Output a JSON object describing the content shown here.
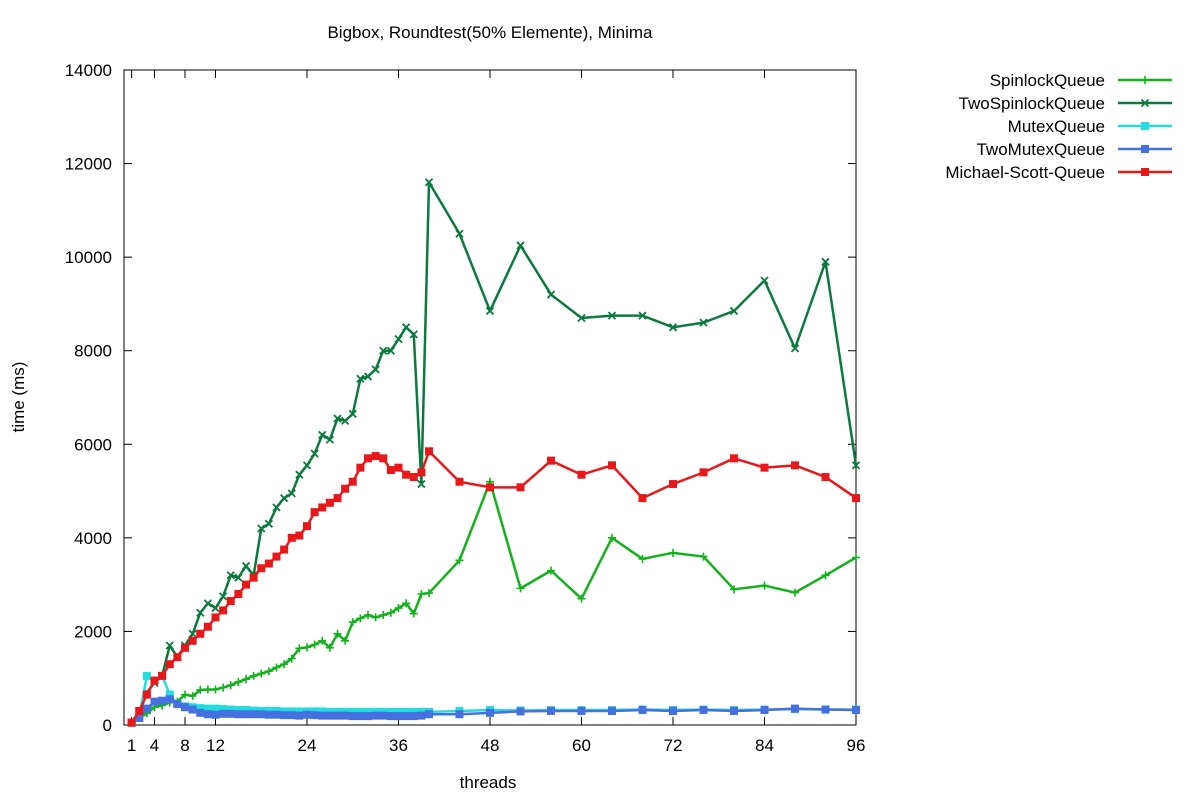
{
  "chart_data": {
    "type": "line",
    "title": "Bigbox, Roundtest(50% Elemente), Minima",
    "xlabel": "threads",
    "ylabel": "time (ms)",
    "xlim": [
      0,
      96
    ],
    "ylim": [
      0,
      14000
    ],
    "xticks": [
      1,
      4,
      8,
      12,
      24,
      36,
      48,
      60,
      72,
      84,
      96
    ],
    "yticks": [
      0,
      2000,
      4000,
      6000,
      8000,
      10000,
      12000,
      14000
    ],
    "grid": false,
    "legend_position": "outside-top-right",
    "series": [
      {
        "name": "SpinlockQueue",
        "color": "#11b21a",
        "marker": "plus",
        "points": [
          [
            1,
            50
          ],
          [
            2,
            150
          ],
          [
            3,
            250
          ],
          [
            4,
            380
          ],
          [
            5,
            420
          ],
          [
            6,
            480
          ],
          [
            7,
            500
          ],
          [
            8,
            650
          ],
          [
            9,
            620
          ],
          [
            10,
            750
          ],
          [
            11,
            760
          ],
          [
            12,
            760
          ],
          [
            13,
            800
          ],
          [
            14,
            850
          ],
          [
            15,
            920
          ],
          [
            16,
            980
          ],
          [
            17,
            1050
          ],
          [
            18,
            1100
          ],
          [
            19,
            1150
          ],
          [
            20,
            1230
          ],
          [
            21,
            1300
          ],
          [
            22,
            1420
          ],
          [
            23,
            1640
          ],
          [
            24,
            1660
          ],
          [
            25,
            1720
          ],
          [
            26,
            1800
          ],
          [
            27,
            1650
          ],
          [
            28,
            1950
          ],
          [
            29,
            1800
          ],
          [
            30,
            2200
          ],
          [
            31,
            2280
          ],
          [
            32,
            2350
          ],
          [
            33,
            2300
          ],
          [
            34,
            2350
          ],
          [
            35,
            2400
          ],
          [
            36,
            2500
          ],
          [
            37,
            2600
          ],
          [
            38,
            2380
          ],
          [
            39,
            2800
          ],
          [
            40,
            2820
          ],
          [
            44,
            3520
          ],
          [
            48,
            5200
          ],
          [
            52,
            2920
          ],
          [
            56,
            3300
          ],
          [
            60,
            2700
          ],
          [
            64,
            4000
          ],
          [
            68,
            3550
          ],
          [
            72,
            3680
          ],
          [
            76,
            3600
          ],
          [
            80,
            2900
          ],
          [
            84,
            2980
          ],
          [
            88,
            2830
          ],
          [
            92,
            3200
          ],
          [
            96,
            3580
          ]
        ]
      },
      {
        "name": "TwoSpinlockQueue",
        "color": "#0a7a3e",
        "marker": "cross",
        "points": [
          [
            1,
            50
          ],
          [
            2,
            250
          ],
          [
            3,
            700
          ],
          [
            4,
            900
          ],
          [
            5,
            1050
          ],
          [
            6,
            1700
          ],
          [
            7,
            1450
          ],
          [
            8,
            1700
          ],
          [
            9,
            1950
          ],
          [
            10,
            2400
          ],
          [
            11,
            2600
          ],
          [
            12,
            2500
          ],
          [
            13,
            2750
          ],
          [
            14,
            3200
          ],
          [
            15,
            3150
          ],
          [
            16,
            3400
          ],
          [
            17,
            3200
          ],
          [
            18,
            4200
          ],
          [
            19,
            4300
          ],
          [
            20,
            4650
          ],
          [
            21,
            4850
          ],
          [
            22,
            4950
          ],
          [
            23,
            5350
          ],
          [
            24,
            5550
          ],
          [
            25,
            5800
          ],
          [
            26,
            6200
          ],
          [
            27,
            6100
          ],
          [
            28,
            6550
          ],
          [
            29,
            6500
          ],
          [
            30,
            6650
          ],
          [
            31,
            7400
          ],
          [
            32,
            7450
          ],
          [
            33,
            7600
          ],
          [
            34,
            8000
          ],
          [
            35,
            8000
          ],
          [
            36,
            8250
          ],
          [
            37,
            8500
          ],
          [
            38,
            8350
          ],
          [
            39,
            5150
          ],
          [
            40,
            11600
          ],
          [
            44,
            10500
          ],
          [
            48,
            8850
          ],
          [
            52,
            10250
          ],
          [
            56,
            9200
          ],
          [
            60,
            8700
          ],
          [
            64,
            8750
          ],
          [
            68,
            8750
          ],
          [
            72,
            8500
          ],
          [
            76,
            8600
          ],
          [
            80,
            8850
          ],
          [
            84,
            9500
          ],
          [
            88,
            8050
          ],
          [
            92,
            9900
          ],
          [
            96,
            5550
          ]
        ]
      },
      {
        "name": "MutexQueue",
        "color": "#22dddd",
        "marker": "square",
        "points": [
          [
            1,
            50
          ],
          [
            2,
            200
          ],
          [
            3,
            1050
          ],
          [
            4,
            950
          ],
          [
            5,
            1050
          ],
          [
            6,
            650
          ],
          [
            7,
            450
          ],
          [
            8,
            400
          ],
          [
            9,
            380
          ],
          [
            10,
            360
          ],
          [
            11,
            350
          ],
          [
            12,
            350
          ],
          [
            13,
            340
          ],
          [
            14,
            330
          ],
          [
            15,
            320
          ],
          [
            16,
            320
          ],
          [
            17,
            310
          ],
          [
            18,
            300
          ],
          [
            19,
            300
          ],
          [
            20,
            300
          ],
          [
            21,
            290
          ],
          [
            22,
            290
          ],
          [
            23,
            290
          ],
          [
            24,
            290
          ],
          [
            25,
            290
          ],
          [
            26,
            290
          ],
          [
            27,
            280
          ],
          [
            28,
            280
          ],
          [
            29,
            280
          ],
          [
            30,
            280
          ],
          [
            31,
            280
          ],
          [
            32,
            280
          ],
          [
            33,
            280
          ],
          [
            34,
            280
          ],
          [
            35,
            280
          ],
          [
            36,
            280
          ],
          [
            37,
            280
          ],
          [
            38,
            280
          ],
          [
            39,
            280
          ],
          [
            40,
            280
          ],
          [
            44,
            300
          ],
          [
            48,
            320
          ],
          [
            52,
            310
          ],
          [
            56,
            320
          ],
          [
            60,
            320
          ],
          [
            64,
            320
          ],
          [
            68,
            330
          ],
          [
            72,
            320
          ],
          [
            76,
            330
          ],
          [
            80,
            320
          ],
          [
            84,
            330
          ],
          [
            88,
            340
          ],
          [
            92,
            330
          ],
          [
            96,
            330
          ]
        ]
      },
      {
        "name": "TwoMutexQueue",
        "color": "#4470e0",
        "marker": "square",
        "points": [
          [
            1,
            50
          ],
          [
            2,
            150
          ],
          [
            3,
            350
          ],
          [
            4,
            500
          ],
          [
            5,
            520
          ],
          [
            6,
            550
          ],
          [
            7,
            450
          ],
          [
            8,
            380
          ],
          [
            9,
            330
          ],
          [
            10,
            260
          ],
          [
            11,
            230
          ],
          [
            12,
            220
          ],
          [
            13,
            240
          ],
          [
            14,
            240
          ],
          [
            15,
            230
          ],
          [
            16,
            230
          ],
          [
            17,
            230
          ],
          [
            18,
            230
          ],
          [
            19,
            220
          ],
          [
            20,
            220
          ],
          [
            21,
            210
          ],
          [
            22,
            210
          ],
          [
            23,
            200
          ],
          [
            24,
            220
          ],
          [
            25,
            210
          ],
          [
            26,
            200
          ],
          [
            27,
            200
          ],
          [
            28,
            200
          ],
          [
            29,
            200
          ],
          [
            30,
            190
          ],
          [
            31,
            190
          ],
          [
            32,
            190
          ],
          [
            33,
            200
          ],
          [
            34,
            200
          ],
          [
            35,
            190
          ],
          [
            36,
            190
          ],
          [
            37,
            190
          ],
          [
            38,
            190
          ],
          [
            39,
            200
          ],
          [
            40,
            230
          ],
          [
            44,
            230
          ],
          [
            48,
            260
          ],
          [
            52,
            290
          ],
          [
            56,
            300
          ],
          [
            60,
            300
          ],
          [
            64,
            300
          ],
          [
            68,
            320
          ],
          [
            72,
            300
          ],
          [
            76,
            320
          ],
          [
            80,
            300
          ],
          [
            84,
            320
          ],
          [
            88,
            350
          ],
          [
            92,
            330
          ],
          [
            96,
            320
          ]
        ]
      },
      {
        "name": "Michael-Scott-Queue",
        "color": "#e8181a",
        "marker": "square",
        "points": [
          [
            1,
            50
          ],
          [
            2,
            300
          ],
          [
            3,
            650
          ],
          [
            4,
            950
          ],
          [
            5,
            1050
          ],
          [
            6,
            1300
          ],
          [
            7,
            1450
          ],
          [
            8,
            1650
          ],
          [
            9,
            1800
          ],
          [
            10,
            1950
          ],
          [
            11,
            2100
          ],
          [
            12,
            2300
          ],
          [
            13,
            2450
          ],
          [
            14,
            2650
          ],
          [
            15,
            2800
          ],
          [
            16,
            3000
          ],
          [
            17,
            3150
          ],
          [
            18,
            3350
          ],
          [
            19,
            3450
          ],
          [
            20,
            3600
          ],
          [
            21,
            3750
          ],
          [
            22,
            4000
          ],
          [
            23,
            4050
          ],
          [
            24,
            4250
          ],
          [
            25,
            4550
          ],
          [
            26,
            4650
          ],
          [
            27,
            4750
          ],
          [
            28,
            4850
          ],
          [
            29,
            5050
          ],
          [
            30,
            5200
          ],
          [
            31,
            5500
          ],
          [
            32,
            5700
          ],
          [
            33,
            5750
          ],
          [
            34,
            5700
          ],
          [
            35,
            5450
          ],
          [
            36,
            5500
          ],
          [
            37,
            5350
          ],
          [
            38,
            5300
          ],
          [
            39,
            5400
          ],
          [
            40,
            5850
          ],
          [
            44,
            5200
          ],
          [
            48,
            5080
          ],
          [
            52,
            5080
          ],
          [
            56,
            5650
          ],
          [
            60,
            5350
          ],
          [
            64,
            5550
          ],
          [
            68,
            4850
          ],
          [
            72,
            5150
          ],
          [
            76,
            5400
          ],
          [
            80,
            5700
          ],
          [
            84,
            5500
          ],
          [
            88,
            5550
          ],
          [
            92,
            5300
          ],
          [
            96,
            4850
          ]
        ]
      }
    ]
  }
}
